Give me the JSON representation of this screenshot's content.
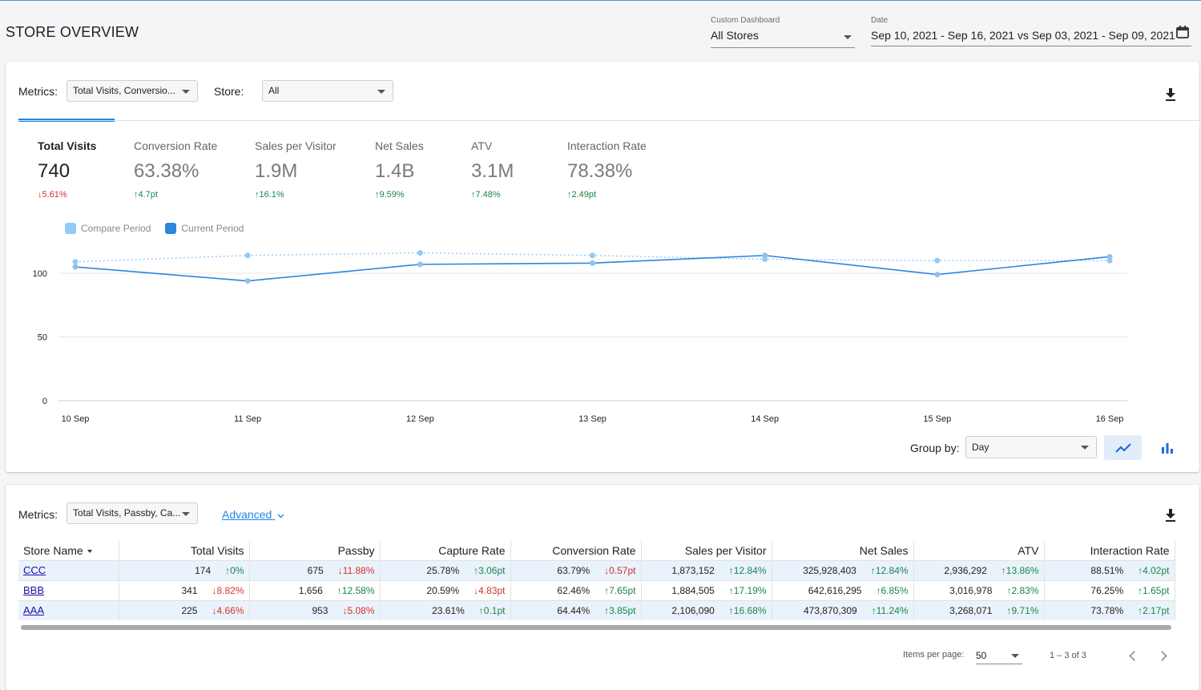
{
  "header": {
    "title": "STORE OVERVIEW",
    "dashboard_label": "Custom Dashboard",
    "dashboard_value": "All Stores",
    "date_label": "Date",
    "date_value": "Sep 10, 2021 - Sep 16, 2021 vs Sep 03, 2021 - Sep 09, 2021",
    "calendar_icon": "calendar-icon"
  },
  "chart_card": {
    "metrics_label": "Metrics:",
    "metrics_value": "Total Visits, Conversio...",
    "store_label": "Store:",
    "store_value": "All",
    "download_icon": "download-icon",
    "kpis": [
      {
        "name": "Total Visits",
        "value": "740",
        "change": "5.61%",
        "direction": "down"
      },
      {
        "name": "Conversion Rate",
        "value": "63.38%",
        "change": "4.7pt",
        "direction": "up"
      },
      {
        "name": "Sales per Visitor",
        "value": "1.9M",
        "change": "16.1%",
        "direction": "up"
      },
      {
        "name": "Net Sales",
        "value": "1.4B",
        "change": "9.59%",
        "direction": "up"
      },
      {
        "name": "ATV",
        "value": "3.1M",
        "change": "7.48%",
        "direction": "up"
      },
      {
        "name": "Interaction Rate",
        "value": "78.38%",
        "change": "2.49pt",
        "direction": "up"
      }
    ],
    "group_by_label": "Group by:",
    "group_by_value": "Day",
    "line_chart_icon": "line-chart-icon",
    "bar_chart_icon": "bar-chart-icon"
  },
  "chart_data": {
    "type": "line",
    "categories": [
      "10 Sep",
      "11 Sep",
      "12 Sep",
      "13 Sep",
      "14 Sep",
      "15 Sep",
      "16 Sep"
    ],
    "series": [
      {
        "name": "Compare Period",
        "values": [
          109,
          114,
          116,
          114,
          111,
          110,
          110
        ],
        "style": "dotted"
      },
      {
        "name": "Current Period",
        "values": [
          105,
          94,
          107,
          108,
          114,
          99,
          113
        ],
        "style": "solid"
      }
    ],
    "yticks": [
      0,
      50,
      100
    ],
    "ylim": [
      0,
      120
    ],
    "grid": true,
    "legend_position": "top-left",
    "colors": {
      "compare": "#90caf9",
      "current": "#2e86de"
    }
  },
  "table_card": {
    "metrics_label": "Metrics:",
    "metrics_value": "Total Visits, Passby, Ca...",
    "advanced_label": "Advanced",
    "download_icon": "download-icon",
    "columns": [
      "Store Name",
      "Total Visits",
      "Passby",
      "Capture Rate",
      "Conversion Rate",
      "Sales per Visitor",
      "Net Sales",
      "ATV",
      "Interaction Rate"
    ],
    "rows": [
      {
        "store": "CCC",
        "cells": [
          {
            "value": "174",
            "change": "0%",
            "direction": "up"
          },
          {
            "value": "675",
            "change": "11.88%",
            "direction": "down"
          },
          {
            "value": "25.78%",
            "change": "3.06pt",
            "direction": "up"
          },
          {
            "value": "63.79%",
            "change": "0.57pt",
            "direction": "down"
          },
          {
            "value": "1,873,152",
            "change": "12.84%",
            "direction": "up"
          },
          {
            "value": "325,928,403",
            "change": "12.84%",
            "direction": "up"
          },
          {
            "value": "2,936,292",
            "change": "13.86%",
            "direction": "up"
          },
          {
            "value": "88.51%",
            "change": "4.02pt",
            "direction": "up"
          }
        ]
      },
      {
        "store": "BBB",
        "cells": [
          {
            "value": "341",
            "change": "8.82%",
            "direction": "down"
          },
          {
            "value": "1,656",
            "change": "12.58%",
            "direction": "up"
          },
          {
            "value": "20.59%",
            "change": "4.83pt",
            "direction": "down"
          },
          {
            "value": "62.46%",
            "change": "7.65pt",
            "direction": "up"
          },
          {
            "value": "1,884,505",
            "change": "17.19%",
            "direction": "up"
          },
          {
            "value": "642,616,295",
            "change": "6.85%",
            "direction": "up"
          },
          {
            "value": "3,016,978",
            "change": "2.83%",
            "direction": "up"
          },
          {
            "value": "76.25%",
            "change": "1.65pt",
            "direction": "up"
          }
        ]
      },
      {
        "store": "AAA",
        "cells": [
          {
            "value": "225",
            "change": "4.66%",
            "direction": "down"
          },
          {
            "value": "953",
            "change": "5.08%",
            "direction": "down"
          },
          {
            "value": "23.61%",
            "change": "0.1pt",
            "direction": "up"
          },
          {
            "value": "64.44%",
            "change": "3.85pt",
            "direction": "up"
          },
          {
            "value": "2,106,090",
            "change": "16.68%",
            "direction": "up"
          },
          {
            "value": "473,870,309",
            "change": "11.24%",
            "direction": "up"
          },
          {
            "value": "3,268,071",
            "change": "9.71%",
            "direction": "up"
          },
          {
            "value": "73.78%",
            "change": "2.17pt",
            "direction": "up"
          }
        ]
      }
    ],
    "items_per_page_label": "Items per page:",
    "items_per_page_value": "50",
    "range_label": "1 – 3 of 3"
  }
}
